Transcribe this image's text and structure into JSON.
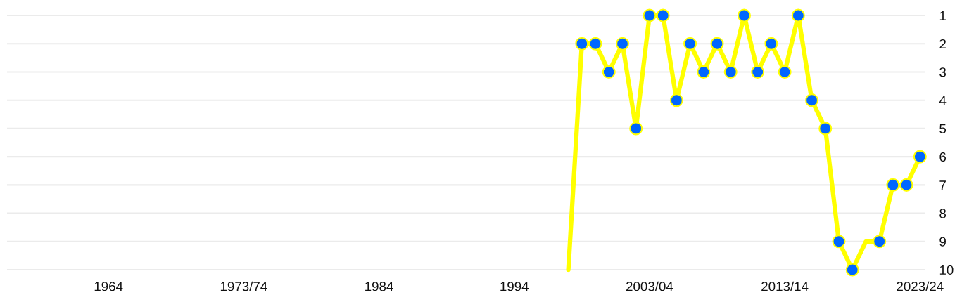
{
  "chart_data": {
    "type": "line",
    "categories": [
      "1964",
      null,
      null,
      null,
      null,
      null,
      null,
      null,
      null,
      null,
      "1973/74",
      null,
      null,
      null,
      null,
      null,
      null,
      null,
      null,
      null,
      "1984",
      null,
      null,
      null,
      null,
      null,
      null,
      null,
      null,
      null,
      "1994",
      null,
      null,
      null,
      null,
      null,
      null,
      null,
      null,
      null,
      "2003/04",
      null,
      null,
      null,
      null,
      null,
      null,
      null,
      null,
      null,
      "2013/14",
      null,
      null,
      null,
      null,
      null,
      null,
      null,
      null,
      null,
      "2023/24"
    ],
    "series": [
      {
        "color": "#ffff00",
        "marker": "none",
        "values": [
          null,
          null,
          null,
          null,
          null,
          null,
          null,
          null,
          null,
          null,
          null,
          null,
          null,
          null,
          null,
          null,
          null,
          null,
          null,
          null,
          null,
          null,
          null,
          null,
          null,
          null,
          null,
          null,
          null,
          null,
          null,
          null,
          null,
          null,
          10,
          2,
          2,
          3,
          2,
          5,
          1,
          1,
          4,
          2,
          3,
          2,
          3,
          1,
          3,
          2,
          3,
          1,
          4,
          5,
          9,
          10,
          9,
          9,
          7,
          7,
          6
        ]
      },
      {
        "type": "scatter",
        "color": "#0066ff",
        "marker": "circle",
        "values": [
          null,
          null,
          null,
          null,
          null,
          null,
          null,
          null,
          null,
          null,
          null,
          null,
          null,
          null,
          null,
          null,
          null,
          null,
          null,
          null,
          null,
          null,
          null,
          null,
          null,
          null,
          null,
          null,
          null,
          null,
          null,
          null,
          null,
          null,
          null,
          2,
          2,
          3,
          2,
          5,
          1,
          1,
          4,
          2,
          3,
          2,
          3,
          1,
          3,
          2,
          3,
          1,
          4,
          5,
          9,
          10,
          null,
          9,
          7,
          7,
          6
        ]
      }
    ],
    "ylim": [
      10,
      1
    ],
    "yticks": [
      1,
      2,
      3,
      4,
      5,
      6,
      7,
      8,
      9,
      10
    ],
    "grid": "y"
  }
}
